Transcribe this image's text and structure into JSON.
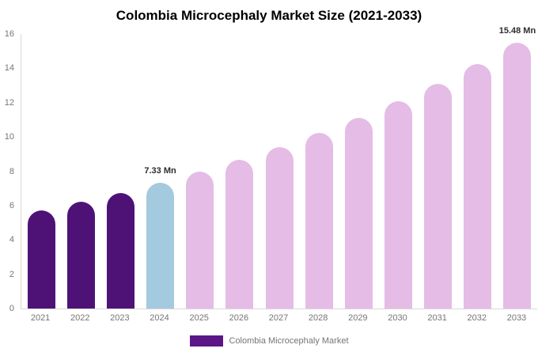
{
  "title": "Colombia Microcephaly Market Size (2021-2033)",
  "legend": {
    "label": "Colombia Microcephaly Market",
    "swatch_color": "#5b1687"
  },
  "colors": {
    "historical_bar": "#4e1277",
    "base_year_bar": "#a3cade",
    "forecast_bar": "#e4bce6",
    "axis_line": "#d8d8d8",
    "tick_text": "#757575",
    "annotation_text": "#2d2d2d",
    "title_text": "#000000"
  },
  "chart_data": {
    "type": "bar",
    "title": "Colombia Microcephaly Market Size (2021-2033)",
    "categories": [
      "2021",
      "2022",
      "2023",
      "2024",
      "2025",
      "2026",
      "2027",
      "2028",
      "2029",
      "2030",
      "2031",
      "2032",
      "2033"
    ],
    "values": [
      5.7,
      6.21,
      6.75,
      7.33,
      7.96,
      8.65,
      9.4,
      10.22,
      11.1,
      12.06,
      13.11,
      14.24,
      15.48
    ],
    "unit": "Mn",
    "bar_colors": [
      "#4e1277",
      "#4e1277",
      "#4e1277",
      "#a3cade",
      "#e4bce6",
      "#e4bce6",
      "#e4bce6",
      "#e4bce6",
      "#e4bce6",
      "#e4bce6",
      "#e4bce6",
      "#e4bce6",
      "#e4bce6"
    ],
    "annotations": [
      {
        "category": "2024",
        "text": "7.33 Mn"
      },
      {
        "category": "2033",
        "text": "15.48 Mn"
      }
    ],
    "xlabel": "",
    "ylabel": "",
    "ylim": [
      0,
      16
    ],
    "yticks": [
      0,
      2,
      4,
      6,
      8,
      10,
      12,
      14,
      16
    ],
    "grid": false,
    "legend_position": "bottom",
    "legend_entries": [
      "Colombia Microcephaly Market"
    ]
  }
}
